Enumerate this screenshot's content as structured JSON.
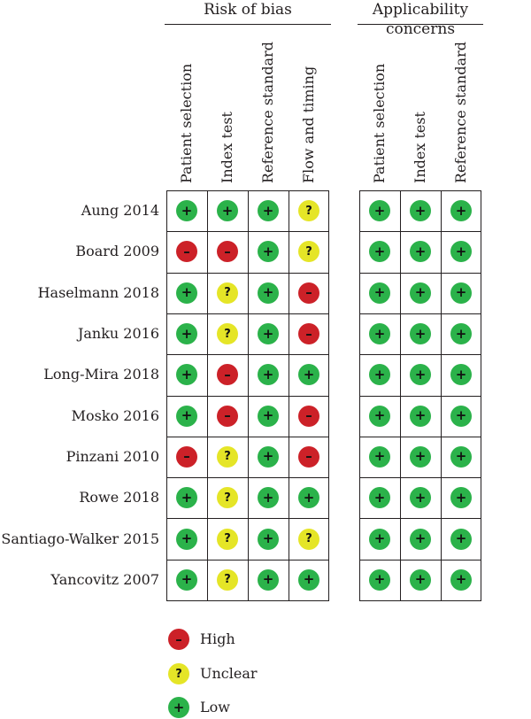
{
  "groups": [
    {
      "title": "Risk of bias",
      "columns": [
        "Patient selection",
        "Index test",
        "Reference standard",
        "Flow and timing"
      ]
    },
    {
      "title": "Applicability concerns",
      "columns": [
        "Patient selection",
        "Index test",
        "Reference standard"
      ]
    }
  ],
  "legend": [
    {
      "level": "high",
      "symbol": "–",
      "label": "High"
    },
    {
      "level": "unclear",
      "symbol": "?",
      "label": "Unclear"
    },
    {
      "level": "low",
      "symbol": "+",
      "label": "Low"
    }
  ],
  "colors": {
    "high": "#cc2128",
    "unclear": "#e5e527",
    "low": "#2bb24a"
  },
  "chart_data": {
    "type": "table",
    "title": "",
    "rows": [
      {
        "study": "Aung 2014",
        "risk_of_bias": [
          "low",
          "low",
          "low",
          "unclear"
        ],
        "applicability": [
          "low",
          "low",
          "low"
        ]
      },
      {
        "study": "Board 2009",
        "risk_of_bias": [
          "high",
          "high",
          "low",
          "unclear"
        ],
        "applicability": [
          "low",
          "low",
          "low"
        ]
      },
      {
        "study": "Haselmann 2018",
        "risk_of_bias": [
          "low",
          "unclear",
          "low",
          "high"
        ],
        "applicability": [
          "low",
          "low",
          "low"
        ]
      },
      {
        "study": "Janku 2016",
        "risk_of_bias": [
          "low",
          "unclear",
          "low",
          "high"
        ],
        "applicability": [
          "low",
          "low",
          "low"
        ]
      },
      {
        "study": "Long-Mira 2018",
        "risk_of_bias": [
          "low",
          "high",
          "low",
          "low"
        ],
        "applicability": [
          "low",
          "low",
          "low"
        ]
      },
      {
        "study": "Mosko 2016",
        "risk_of_bias": [
          "low",
          "high",
          "low",
          "high"
        ],
        "applicability": [
          "low",
          "low",
          "low"
        ]
      },
      {
        "study": "Pinzani 2010",
        "risk_of_bias": [
          "high",
          "unclear",
          "low",
          "high"
        ],
        "applicability": [
          "low",
          "low",
          "low"
        ]
      },
      {
        "study": "Rowe 2018",
        "risk_of_bias": [
          "low",
          "unclear",
          "low",
          "low"
        ],
        "applicability": [
          "low",
          "low",
          "low"
        ]
      },
      {
        "study": "Santiago-Walker 2015",
        "risk_of_bias": [
          "low",
          "unclear",
          "low",
          "unclear"
        ],
        "applicability": [
          "low",
          "low",
          "low"
        ]
      },
      {
        "study": "Yancovitz 2007",
        "risk_of_bias": [
          "low",
          "unclear",
          "low",
          "low"
        ],
        "applicability": [
          "low",
          "low",
          "low"
        ]
      }
    ]
  }
}
